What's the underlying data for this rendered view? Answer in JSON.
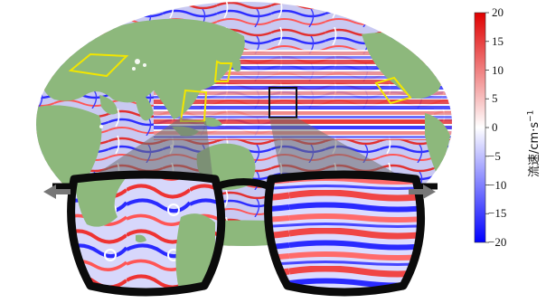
{
  "figure": {
    "colormap": {
      "negative": "#1a1aff",
      "mid": "#ffffff",
      "positive": "#e01010"
    },
    "land_color": "#8db87c",
    "highlight_box_colors": {
      "yellow": "#f2e600",
      "black": "#111111"
    },
    "colorbar": {
      "ticks": [
        "20",
        "15",
        "10",
        "5",
        "0",
        "−5",
        "−10",
        "−15",
        "−20"
      ],
      "range": [
        -20,
        20
      ],
      "title": "流速/cm·s",
      "title_superscript": "−1"
    },
    "magnifier_left": {
      "content": "zoomed coastal region",
      "arrow": "left-arrow-icon"
    },
    "magnifier_right": {
      "content": "zoomed open-ocean region",
      "arrow": "right-arrow-icon"
    }
  }
}
